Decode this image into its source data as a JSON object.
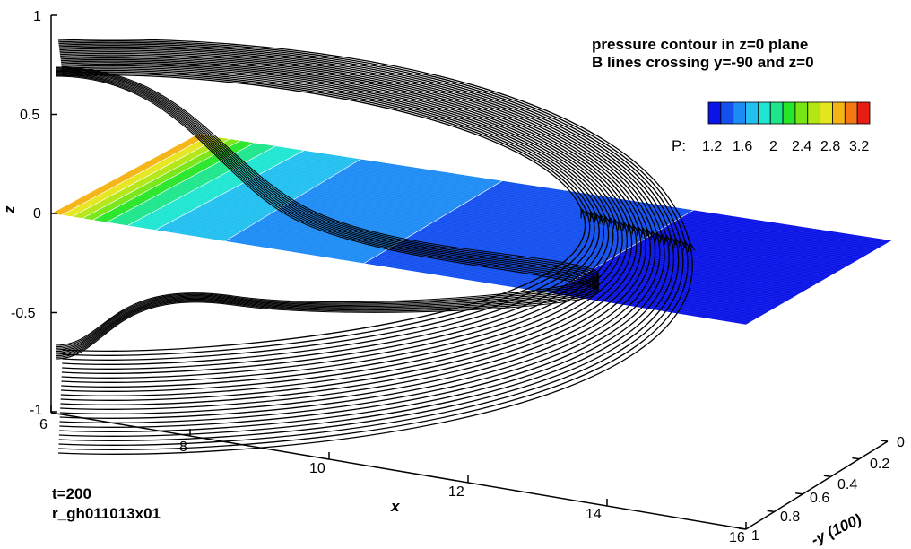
{
  "chart_data": {
    "type": "contour-3d",
    "titles": [
      "pressure contour in z=0 plane",
      "B lines crossing y=-90 and z=0"
    ],
    "annotations": [
      "t=200",
      "r_gh011013x01"
    ],
    "axes": {
      "x": {
        "label": "x",
        "range": [
          6,
          16
        ],
        "ticks": [
          "6",
          "8",
          "10",
          "12",
          "14",
          "16"
        ]
      },
      "y": {
        "label": "-y (100)",
        "range": [
          0,
          1
        ],
        "ticks": [
          "0",
          "0.2",
          "0.4",
          "0.6",
          "0.8",
          "1"
        ]
      },
      "z": {
        "label": "z",
        "range": [
          -1,
          1
        ],
        "ticks": [
          "1",
          "0.5",
          "0",
          "-0.5",
          "-1"
        ]
      }
    },
    "legend": {
      "label": "P:",
      "tick_labels": [
        "1.2",
        "1.6",
        "2",
        "2.4",
        "2.8",
        "3.2"
      ],
      "levels": [
        1.0,
        1.2,
        1.4,
        1.6,
        1.8,
        2.0,
        2.2,
        2.4,
        2.6,
        2.8,
        3.0,
        3.2,
        3.4
      ],
      "colors": [
        "#0a14e6",
        "#1450f0",
        "#1e8cf5",
        "#22c0f0",
        "#1ee6d2",
        "#1ee68c",
        "#28e628",
        "#78e614",
        "#b4e614",
        "#e6e61e",
        "#f5b414",
        "#f57814",
        "#e61e14"
      ],
      "placement": "top-right"
    },
    "pressure_plane": {
      "level_color_indices": [
        10,
        9,
        8,
        7,
        6,
        5,
        4,
        3,
        2,
        1,
        0
      ]
    },
    "field_lines": {
      "count": 24,
      "color": "#000000"
    }
  }
}
